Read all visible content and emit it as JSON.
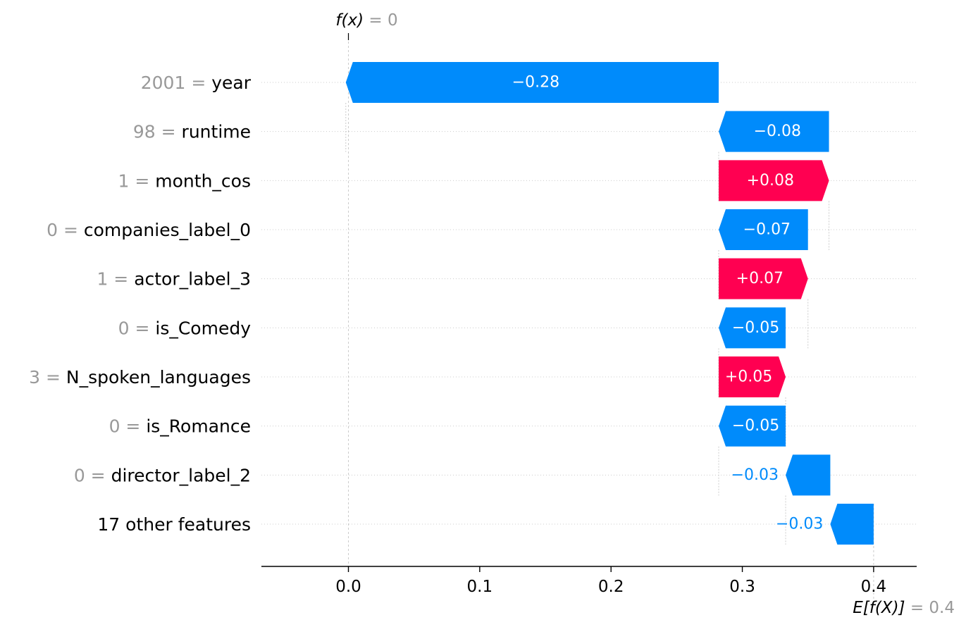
{
  "chart_data": {
    "type": "waterfall",
    "base_value": 0.4,
    "output_value": 0,
    "top_label": {
      "text": "f(x)",
      "value_text": "0"
    },
    "bottom_label": {
      "text": "E[f(X)]",
      "value_text": "0.4"
    },
    "xlim": [
      -0.067,
      0.434
    ],
    "x_ticks": [
      0.0,
      0.1,
      0.2,
      0.3,
      0.4
    ],
    "x_tick_labels": [
      "0.0",
      "0.1",
      "0.2",
      "0.3",
      "0.4"
    ],
    "features": [
      {
        "value": "2001",
        "name": "year",
        "shap": -0.284,
        "label": "−0.28"
      },
      {
        "value": "98",
        "name": "runtime",
        "shap": -0.084,
        "label": "−0.08"
      },
      {
        "value": "1",
        "name": "month_cos",
        "shap": 0.084,
        "label": "+0.08"
      },
      {
        "value": "0",
        "name": "companies_label_0",
        "shap": -0.068,
        "label": "−0.07"
      },
      {
        "value": "1",
        "name": "actor_label_3",
        "shap": 0.068,
        "label": "+0.07"
      },
      {
        "value": "0",
        "name": "is_Comedy",
        "shap": -0.051,
        "label": "−0.05"
      },
      {
        "value": "3",
        "name": "N_spoken_languages",
        "shap": 0.051,
        "label": "+0.05"
      },
      {
        "value": "0",
        "name": "is_Romance",
        "shap": -0.051,
        "label": "−0.05"
      },
      {
        "value": "0",
        "name": "director_label_2",
        "shap": -0.034,
        "label": "−0.03"
      },
      {
        "value": "",
        "name": "17 other features",
        "shap": -0.033,
        "label": "−0.03"
      }
    ],
    "colors": {
      "negative": "#008bfb",
      "positive": "#ff0051",
      "text_gray": "#999999",
      "axis": "#000000",
      "grid": "#cccccc"
    }
  }
}
